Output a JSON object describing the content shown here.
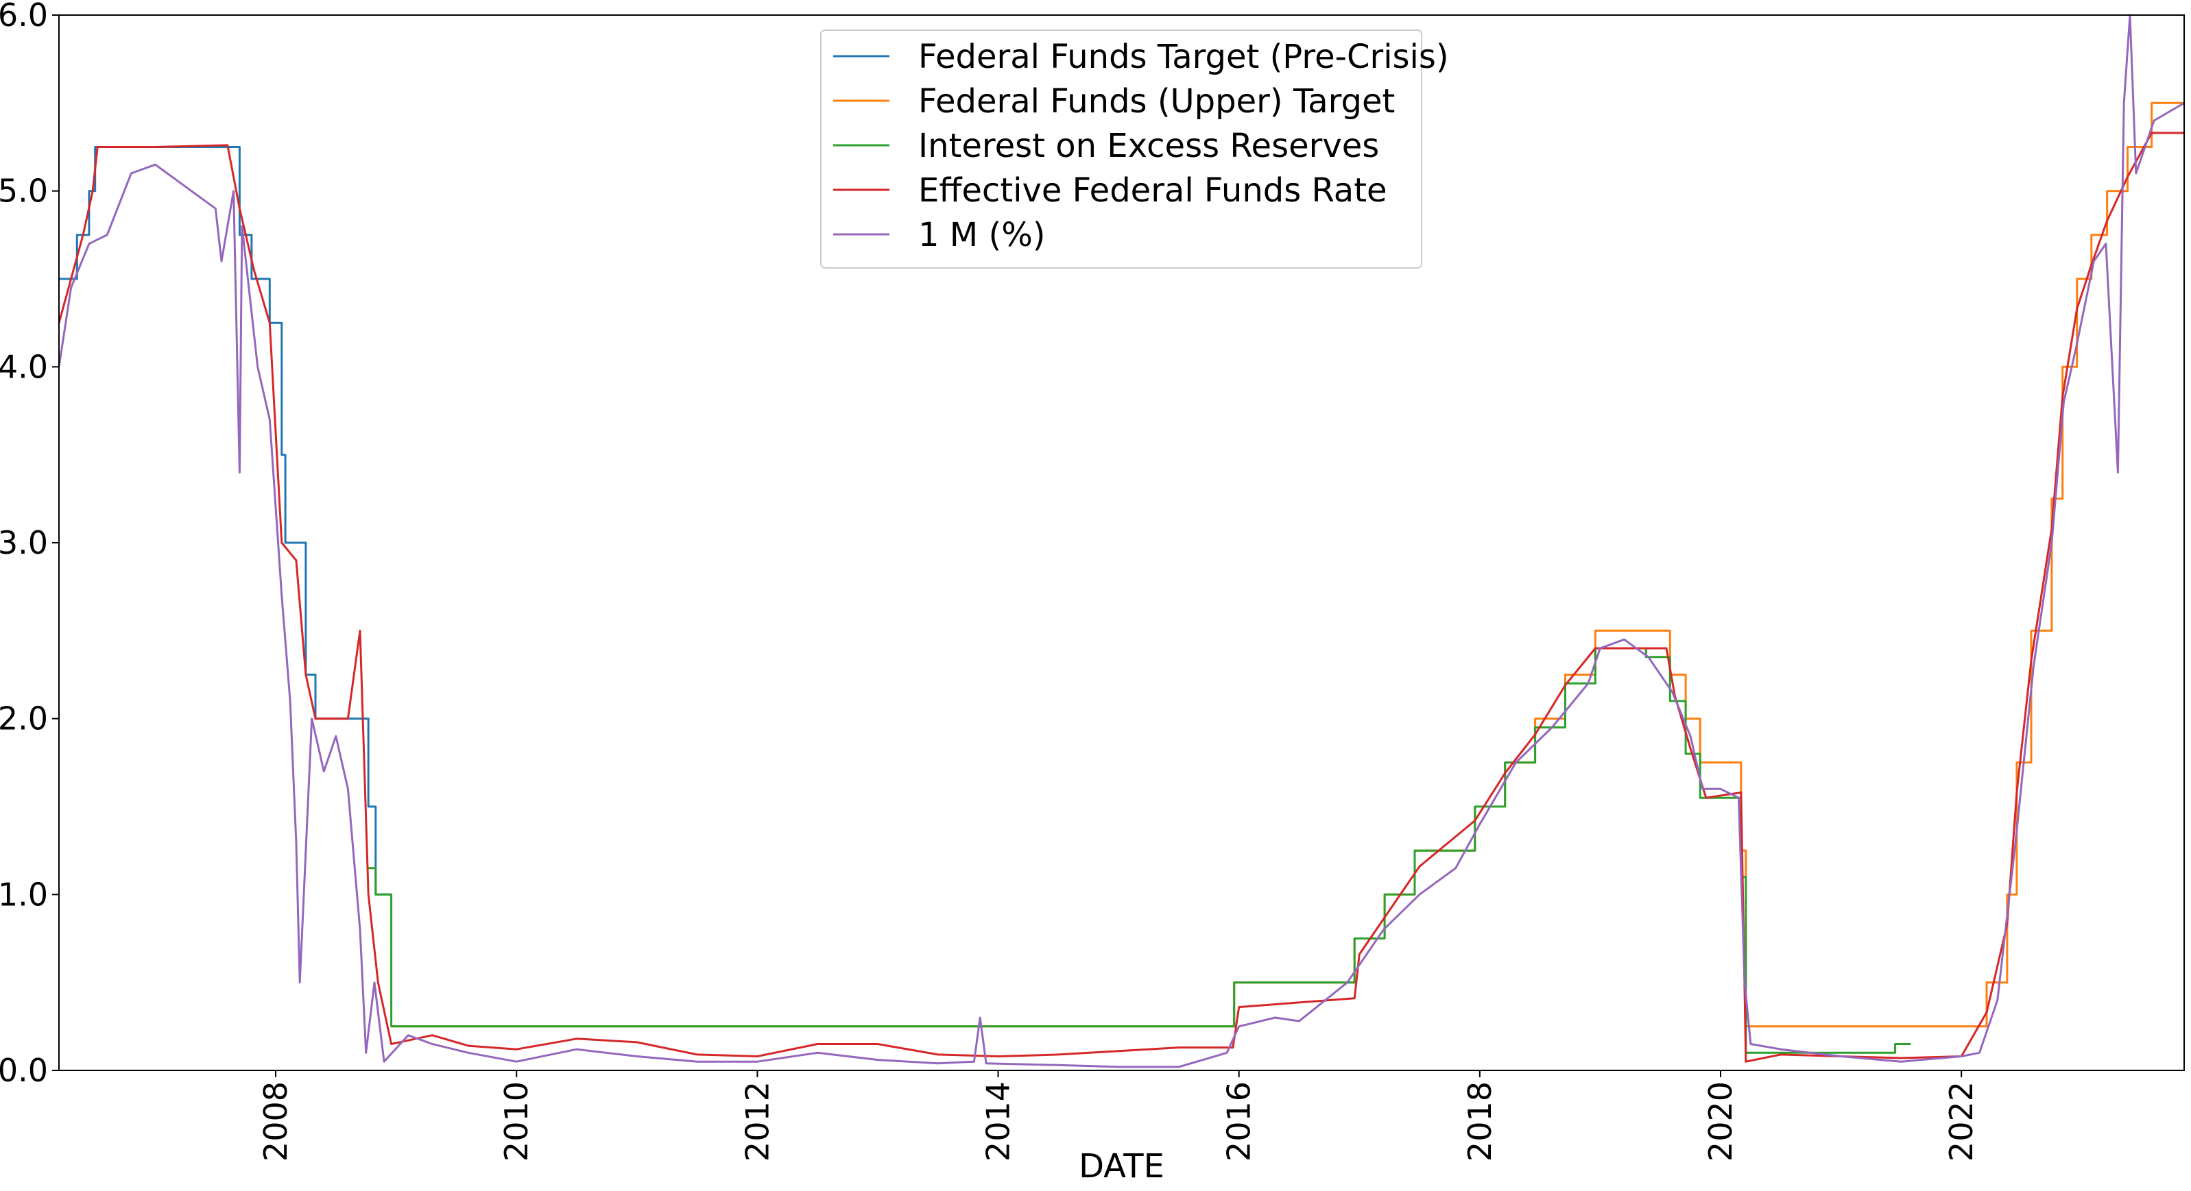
{
  "chart_data": {
    "type": "line",
    "xlabel": "DATE",
    "ylabel": "",
    "xlim": [
      2006.2,
      2023.85
    ],
    "ylim": [
      0.0,
      6.0
    ],
    "x_ticks": [
      2008,
      2010,
      2012,
      2014,
      2016,
      2018,
      2020,
      2022
    ],
    "x_tick_labels": [
      "2008",
      "2010",
      "2012",
      "2014",
      "2016",
      "2018",
      "2020",
      "2022"
    ],
    "y_ticks": [
      0,
      1,
      2,
      3,
      4,
      5,
      6
    ],
    "y_tick_labels": [
      "0.0",
      "1.0",
      "2.0",
      "3.0",
      "4.0",
      "5.0",
      "6.0"
    ],
    "grid": false,
    "legend_position": "top-center",
    "series": [
      {
        "name": "Federal Funds Target (Pre-Crisis)",
        "color": "#1f77b4",
        "step": true,
        "points": [
          [
            2006.2,
            4.5
          ],
          [
            2006.35,
            4.75
          ],
          [
            2006.45,
            5.0
          ],
          [
            2006.5,
            5.25
          ],
          [
            2007.7,
            4.75
          ],
          [
            2007.8,
            4.5
          ],
          [
            2007.95,
            4.25
          ],
          [
            2008.05,
            3.5
          ],
          [
            2008.08,
            3.0
          ],
          [
            2008.25,
            2.25
          ],
          [
            2008.33,
            2.0
          ],
          [
            2008.77,
            1.5
          ],
          [
            2008.83,
            1.0
          ],
          [
            2008.96,
            1.0
          ]
        ]
      },
      {
        "name": "Federal Funds (Upper) Target",
        "color": "#ff7f0e",
        "step": true,
        "points": [
          [
            2008.96,
            0.25
          ],
          [
            2015.96,
            0.5
          ],
          [
            2016.96,
            0.75
          ],
          [
            2017.21,
            1.0
          ],
          [
            2017.46,
            1.25
          ],
          [
            2017.96,
            1.5
          ],
          [
            2018.21,
            1.75
          ],
          [
            2018.46,
            2.0
          ],
          [
            2018.71,
            2.25
          ],
          [
            2018.96,
            2.5
          ],
          [
            2019.58,
            2.25
          ],
          [
            2019.71,
            2.0
          ],
          [
            2019.83,
            1.75
          ],
          [
            2020.17,
            1.25
          ],
          [
            2020.21,
            0.25
          ],
          [
            2022.21,
            0.5
          ],
          [
            2022.38,
            1.0
          ],
          [
            2022.46,
            1.75
          ],
          [
            2022.58,
            2.5
          ],
          [
            2022.75,
            3.25
          ],
          [
            2022.84,
            4.0
          ],
          [
            2022.96,
            4.5
          ],
          [
            2023.08,
            4.75
          ],
          [
            2023.21,
            5.0
          ],
          [
            2023.38,
            5.25
          ],
          [
            2023.58,
            5.5
          ],
          [
            2023.85,
            5.5
          ]
        ]
      },
      {
        "name": "Interest on Excess Reserves",
        "color": "#2ca02c",
        "step": true,
        "points": [
          [
            2008.77,
            1.15
          ],
          [
            2008.83,
            1.0
          ],
          [
            2008.96,
            0.25
          ],
          [
            2015.96,
            0.5
          ],
          [
            2016.96,
            0.75
          ],
          [
            2017.21,
            1.0
          ],
          [
            2017.46,
            1.25
          ],
          [
            2017.96,
            1.5
          ],
          [
            2018.21,
            1.75
          ],
          [
            2018.46,
            1.95
          ],
          [
            2018.71,
            2.2
          ],
          [
            2018.96,
            2.4
          ],
          [
            2019.38,
            2.35
          ],
          [
            2019.58,
            2.1
          ],
          [
            2019.71,
            1.8
          ],
          [
            2019.83,
            1.55
          ],
          [
            2020.17,
            1.1
          ],
          [
            2020.21,
            0.1
          ],
          [
            2021.45,
            0.15
          ],
          [
            2021.58,
            0.15
          ]
        ]
      },
      {
        "name": "Effective Federal Funds Rate",
        "color": "#d62728",
        "step": false,
        "points": [
          [
            2006.2,
            4.25
          ],
          [
            2006.3,
            4.5
          ],
          [
            2006.4,
            4.75
          ],
          [
            2006.48,
            5.0
          ],
          [
            2006.52,
            5.25
          ],
          [
            2007.0,
            5.25
          ],
          [
            2007.6,
            5.26
          ],
          [
            2007.7,
            4.9
          ],
          [
            2007.82,
            4.55
          ],
          [
            2007.95,
            4.25
          ],
          [
            2008.05,
            3.0
          ],
          [
            2008.17,
            2.9
          ],
          [
            2008.25,
            2.25
          ],
          [
            2008.33,
            2.0
          ],
          [
            2008.6,
            2.0
          ],
          [
            2008.7,
            2.5
          ],
          [
            2008.77,
            1.0
          ],
          [
            2008.85,
            0.5
          ],
          [
            2008.96,
            0.15
          ],
          [
            2009.3,
            0.2
          ],
          [
            2009.6,
            0.14
          ],
          [
            2010.0,
            0.12
          ],
          [
            2010.5,
            0.18
          ],
          [
            2011.0,
            0.16
          ],
          [
            2011.5,
            0.09
          ],
          [
            2012.0,
            0.08
          ],
          [
            2012.5,
            0.15
          ],
          [
            2013.0,
            0.15
          ],
          [
            2013.5,
            0.09
          ],
          [
            2014.0,
            0.08
          ],
          [
            2014.5,
            0.09
          ],
          [
            2015.0,
            0.11
          ],
          [
            2015.5,
            0.13
          ],
          [
            2015.95,
            0.13
          ],
          [
            2016.0,
            0.36
          ],
          [
            2016.96,
            0.41
          ],
          [
            2017.0,
            0.66
          ],
          [
            2017.25,
            0.91
          ],
          [
            2017.5,
            1.16
          ],
          [
            2017.96,
            1.42
          ],
          [
            2018.21,
            1.69
          ],
          [
            2018.46,
            1.91
          ],
          [
            2018.71,
            2.19
          ],
          [
            2018.96,
            2.4
          ],
          [
            2019.55,
            2.4
          ],
          [
            2019.62,
            2.13
          ],
          [
            2019.75,
            1.83
          ],
          [
            2019.88,
            1.55
          ],
          [
            2020.17,
            1.58
          ],
          [
            2020.21,
            0.05
          ],
          [
            2020.5,
            0.09
          ],
          [
            2021.0,
            0.08
          ],
          [
            2021.5,
            0.07
          ],
          [
            2022.0,
            0.08
          ],
          [
            2022.21,
            0.33
          ],
          [
            2022.38,
            0.83
          ],
          [
            2022.46,
            1.58
          ],
          [
            2022.58,
            2.33
          ],
          [
            2022.75,
            3.08
          ],
          [
            2022.84,
            3.83
          ],
          [
            2022.96,
            4.33
          ],
          [
            2023.08,
            4.58
          ],
          [
            2023.21,
            4.83
          ],
          [
            2023.38,
            5.08
          ],
          [
            2023.58,
            5.33
          ],
          [
            2023.85,
            5.33
          ]
        ]
      },
      {
        "name": "1 M (%)",
        "color": "#9467bd",
        "step": false,
        "points": [
          [
            2006.2,
            4.0
          ],
          [
            2006.3,
            4.45
          ],
          [
            2006.45,
            4.7
          ],
          [
            2006.6,
            4.75
          ],
          [
            2006.8,
            5.1
          ],
          [
            2007.0,
            5.15
          ],
          [
            2007.3,
            5.0
          ],
          [
            2007.5,
            4.9
          ],
          [
            2007.55,
            4.6
          ],
          [
            2007.65,
            5.0
          ],
          [
            2007.7,
            3.4
          ],
          [
            2007.72,
            4.8
          ],
          [
            2007.85,
            4.0
          ],
          [
            2007.95,
            3.7
          ],
          [
            2008.05,
            2.7
          ],
          [
            2008.12,
            2.1
          ],
          [
            2008.17,
            1.3
          ],
          [
            2008.2,
            0.5
          ],
          [
            2008.3,
            2.0
          ],
          [
            2008.4,
            1.7
          ],
          [
            2008.5,
            1.9
          ],
          [
            2008.6,
            1.6
          ],
          [
            2008.7,
            0.8
          ],
          [
            2008.75,
            0.1
          ],
          [
            2008.82,
            0.5
          ],
          [
            2008.9,
            0.05
          ],
          [
            2009.1,
            0.2
          ],
          [
            2009.3,
            0.15
          ],
          [
            2009.6,
            0.1
          ],
          [
            2010.0,
            0.05
          ],
          [
            2010.5,
            0.12
          ],
          [
            2011.0,
            0.08
          ],
          [
            2011.5,
            0.05
          ],
          [
            2012.0,
            0.05
          ],
          [
            2012.5,
            0.1
          ],
          [
            2013.0,
            0.06
          ],
          [
            2013.5,
            0.04
          ],
          [
            2013.8,
            0.05
          ],
          [
            2013.85,
            0.3
          ],
          [
            2013.9,
            0.04
          ],
          [
            2014.5,
            0.03
          ],
          [
            2015.0,
            0.02
          ],
          [
            2015.5,
            0.02
          ],
          [
            2015.9,
            0.1
          ],
          [
            2016.0,
            0.25
          ],
          [
            2016.3,
            0.3
          ],
          [
            2016.5,
            0.28
          ],
          [
            2016.9,
            0.5
          ],
          [
            2017.2,
            0.8
          ],
          [
            2017.5,
            1.0
          ],
          [
            2017.8,
            1.15
          ],
          [
            2018.0,
            1.4
          ],
          [
            2018.3,
            1.75
          ],
          [
            2018.6,
            1.95
          ],
          [
            2018.9,
            2.2
          ],
          [
            2019.0,
            2.4
          ],
          [
            2019.2,
            2.45
          ],
          [
            2019.4,
            2.35
          ],
          [
            2019.6,
            2.15
          ],
          [
            2019.75,
            1.9
          ],
          [
            2019.85,
            1.6
          ],
          [
            2020.0,
            1.6
          ],
          [
            2020.15,
            1.55
          ],
          [
            2020.2,
            0.5
          ],
          [
            2020.25,
            0.15
          ],
          [
            2020.5,
            0.12
          ],
          [
            2021.0,
            0.08
          ],
          [
            2021.5,
            0.05
          ],
          [
            2022.0,
            0.08
          ],
          [
            2022.15,
            0.1
          ],
          [
            2022.3,
            0.4
          ],
          [
            2022.45,
            1.3
          ],
          [
            2022.6,
            2.3
          ],
          [
            2022.75,
            3.0
          ],
          [
            2022.85,
            3.8
          ],
          [
            2022.95,
            4.1
          ],
          [
            2023.1,
            4.6
          ],
          [
            2023.2,
            4.7
          ],
          [
            2023.3,
            3.4
          ],
          [
            2023.35,
            5.5
          ],
          [
            2023.4,
            6.0
          ],
          [
            2023.45,
            5.1
          ],
          [
            2023.6,
            5.4
          ],
          [
            2023.85,
            5.5
          ]
        ]
      }
    ]
  }
}
